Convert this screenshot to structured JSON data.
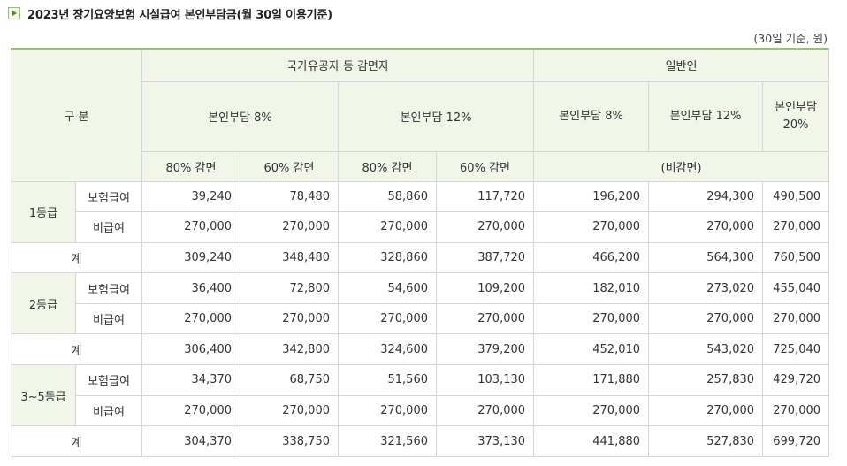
{
  "title": "2023년 장기요양보험 시설급여 본인부담금(월 30일 이용기준)",
  "title_icon": "play-arrow-icon",
  "unit_note": "(30일 기준, 원)",
  "header": {
    "category": "구 분",
    "group_reduced": "국가유공자 등 감면자",
    "group_general": "일반인",
    "sub_8": "본인부담 8%",
    "sub_12": "본인부담 12%",
    "gen_8": "본인부담 8%",
    "gen_12": "본인부담 12%",
    "gen_20": "본인부담 20%",
    "red_80": "80% 감면",
    "red_60": "60% 감면",
    "red2_80": "80% 감면",
    "red2_60": "60% 감면",
    "non_reduced": "(비감면)"
  },
  "grades": [
    {
      "name": "1등급",
      "rows": [
        {
          "label": "보험급여",
          "values": [
            "39,240",
            "78,480",
            "58,860",
            "117,720",
            "196,200",
            "294,300",
            "490,500"
          ]
        },
        {
          "label": "비급여",
          "values": [
            "270,000",
            "270,000",
            "270,000",
            "270,000",
            "270,000",
            "270,000",
            "270,000"
          ]
        }
      ],
      "total": {
        "label": "계",
        "values": [
          "309,240",
          "348,480",
          "328,860",
          "387,720",
          "466,200",
          "564,300",
          "760,500"
        ]
      }
    },
    {
      "name": "2등급",
      "rows": [
        {
          "label": "보험급여",
          "values": [
            "36,400",
            "72,800",
            "54,600",
            "109,200",
            "182,010",
            "273,020",
            "455,040"
          ]
        },
        {
          "label": "비급여",
          "values": [
            "270,000",
            "270,000",
            "270,000",
            "270,000",
            "270,000",
            "270,000",
            "270,000"
          ]
        }
      ],
      "total": {
        "label": "계",
        "values": [
          "306,400",
          "342,800",
          "324,600",
          "379,200",
          "452,010",
          "543,020",
          "725,040"
        ]
      }
    },
    {
      "name": "3~5등급",
      "rows": [
        {
          "label": "보험급여",
          "values": [
            "34,370",
            "68,750",
            "51,560",
            "103,130",
            "171,880",
            "257,830",
            "429,720"
          ]
        },
        {
          "label": "비급여",
          "values": [
            "270,000",
            "270,000",
            "270,000",
            "270,000",
            "270,000",
            "270,000",
            "270,000"
          ]
        }
      ],
      "total": {
        "label": "계",
        "values": [
          "304,370",
          "338,750",
          "321,560",
          "373,130",
          "441,880",
          "527,830",
          "699,720"
        ]
      }
    }
  ],
  "colors": {
    "header_bg": "#f1f6e9",
    "top_border": "#93c47d",
    "grid": "#d7d7d7"
  }
}
